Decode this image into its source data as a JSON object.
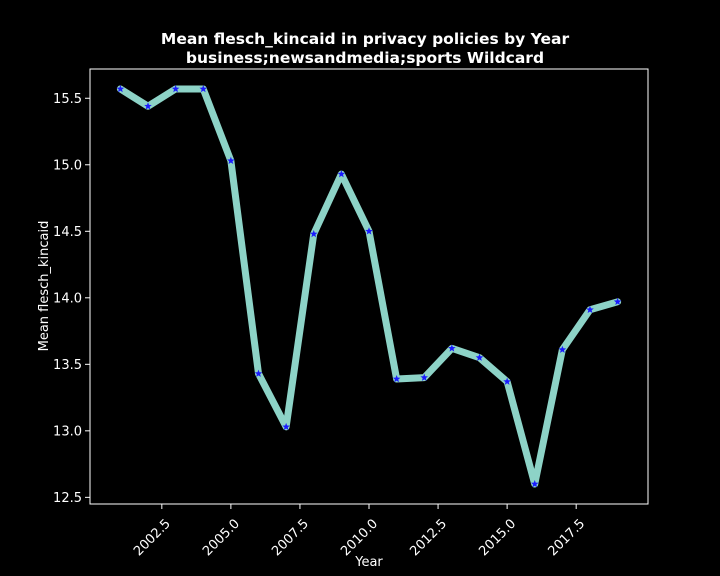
{
  "chart_data": {
    "type": "line",
    "title_lines": [
      "Mean flesch_kincaid in privacy policies by Year",
      "business;newsandmedia;sports Wildcard"
    ],
    "xlabel": "Year",
    "ylabel": "Mean flesch_kincaid",
    "xlim": [
      1999.9,
      2020.1
    ],
    "ylim": [
      12.45,
      15.72
    ],
    "xticks": [
      2002.5,
      2005.0,
      2007.5,
      2010.0,
      2012.5,
      2015.0,
      2017.5
    ],
    "xtick_labels": [
      "2002.5",
      "2005.0",
      "2007.5",
      "2010.0",
      "2012.5",
      "2015.0",
      "2017.5"
    ],
    "yticks": [
      12.5,
      13.0,
      13.5,
      14.0,
      14.5,
      15.0,
      15.5
    ],
    "ytick_labels": [
      "12.5",
      "13.0",
      "13.5",
      "14.0",
      "14.5",
      "15.0",
      "15.5"
    ],
    "grid": false,
    "legend": false,
    "line_color": "#8dd3c7",
    "marker_color": "#1a1aff",
    "marker": "star",
    "x": [
      2001,
      2002,
      2003,
      2004,
      2005,
      2006,
      2007,
      2008,
      2009,
      2010,
      2011,
      2012,
      2013,
      2014,
      2015,
      2016,
      2017,
      2018,
      2019
    ],
    "y": [
      15.57,
      15.44,
      15.57,
      15.57,
      15.03,
      13.43,
      13.03,
      14.48,
      14.93,
      14.5,
      13.39,
      13.4,
      13.62,
      13.55,
      13.37,
      12.6,
      13.61,
      13.91,
      13.97
    ]
  }
}
